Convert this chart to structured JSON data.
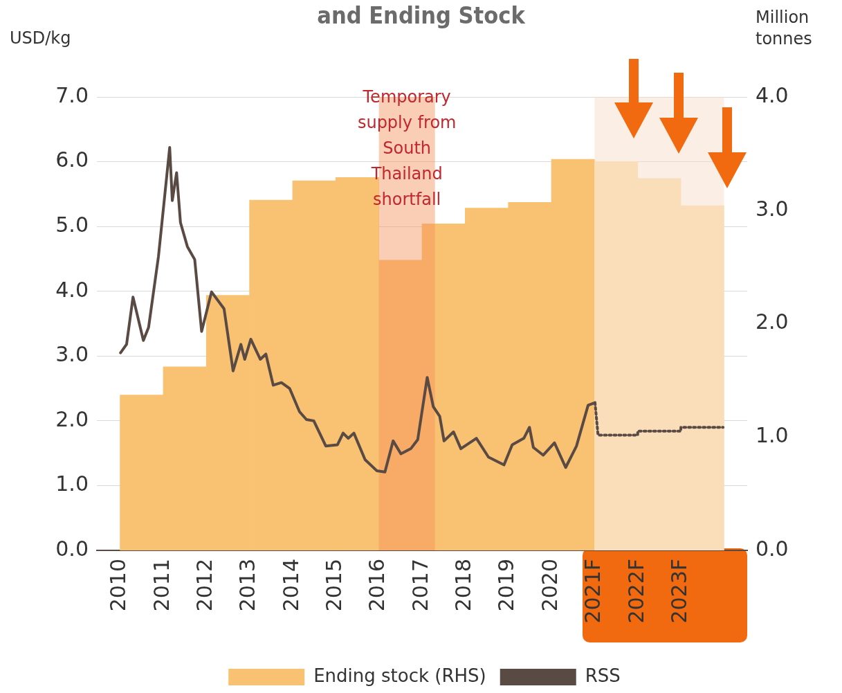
{
  "chart_data": {
    "type": "line",
    "title": "and Ending Stock",
    "ylabel": "USD/kg",
    "y2label": "Million tonnes",
    "xlim": [
      2010,
      2024
    ],
    "xticks": [
      2010,
      2011,
      2012,
      2013,
      2014,
      2015,
      2016,
      2017,
      2018,
      2019,
      2020,
      {
        "value": 2021,
        "label": "2021F"
      },
      {
        "value": 2022,
        "label": "2022F"
      },
      {
        "value": 2023,
        "label": "2023F"
      }
    ],
    "ylim": [
      0,
      7
    ],
    "yticks": [
      {
        "value": 0,
        "label": "0.0"
      },
      {
        "value": 1,
        "label": "1.0"
      },
      {
        "value": 2,
        "label": "2.0"
      },
      {
        "value": 3,
        "label": "3.0"
      },
      {
        "value": 4,
        "label": "4.0"
      },
      {
        "value": 5,
        "label": "5.0"
      },
      {
        "value": 6,
        "label": "6.0"
      },
      {
        "value": 7,
        "label": "7.0"
      }
    ],
    "y2lim": [
      0,
      4
    ],
    "y2ticks": [
      {
        "value": 0,
        "label": "0.0"
      },
      {
        "value": 1,
        "label": "1.0"
      },
      {
        "value": 2,
        "label": "2.0"
      },
      {
        "value": 3,
        "label": "3.0"
      },
      {
        "value": 4,
        "label": "4.0"
      }
    ],
    "grid": "y",
    "legend": "bottom",
    "series": [
      {
        "name": "Ending stock (RHS)",
        "type": "bar",
        "axis": "y2",
        "color": "#f9c272",
        "colors": [
          "#f9c272",
          "#f9c272",
          "#f9c272",
          "#f9c272",
          "#f9c272",
          "#f9c272",
          "#f9c272",
          "#f9c272",
          "#f9c272",
          "#f9c272",
          "#f9c272",
          "#fde2b2",
          "#fde2b2",
          "#fde2b2"
        ],
        "x": [
          2010.5,
          2011.5,
          2012.5,
          2013.5,
          2014.5,
          2015.5,
          2016.5,
          2017.5,
          2018.5,
          2019.5,
          2020.5,
          2021.5,
          2022.5,
          2023.5
        ],
        "values": [
          1.37,
          1.62,
          2.25,
          3.09,
          3.26,
          3.29,
          2.56,
          2.88,
          3.02,
          3.07,
          3.45,
          3.43,
          3.28,
          3.04
        ]
      },
      {
        "name": "RSS",
        "color": "#5a4a44",
        "line_style": "solid",
        "x": [
          2010.01,
          2010.15,
          2010.3,
          2010.54,
          2010.66,
          2010.89,
          2011.15,
          2011.21,
          2011.31,
          2011.4,
          2011.56,
          2011.73,
          2011.89,
          2012.12,
          2012.41,
          2012.62,
          2012.8,
          2012.89,
          2013.03,
          2013.25,
          2013.38,
          2013.55,
          2013.74,
          2013.93,
          2014.16,
          2014.32,
          2014.49,
          2014.77,
          2015.04,
          2015.17,
          2015.29,
          2015.42,
          2015.68,
          2015.95,
          2016.14,
          2016.33,
          2016.51,
          2016.74,
          2016.9,
          2017.12,
          2017.26,
          2017.41,
          2017.51,
          2017.73,
          2017.9,
          2018.26,
          2018.54,
          2018.9,
          2019.09,
          2019.36,
          2019.49,
          2019.58,
          2019.81,
          2020.07,
          2020.33,
          2020.58,
          2020.85,
          2021.01
        ],
        "values": [
          3.05,
          3.18,
          3.91,
          3.24,
          3.44,
          4.54,
          6.22,
          5.4,
          5.83,
          5.06,
          4.69,
          4.49,
          3.38,
          3.99,
          3.73,
          2.77,
          3.18,
          2.95,
          3.26,
          2.95,
          3.03,
          2.55,
          2.59,
          2.5,
          2.14,
          2.02,
          2.0,
          1.61,
          1.63,
          1.81,
          1.73,
          1.81,
          1.4,
          1.23,
          1.21,
          1.69,
          1.49,
          1.57,
          1.71,
          2.67,
          2.22,
          2.07,
          1.69,
          1.83,
          1.57,
          1.73,
          1.44,
          1.32,
          1.63,
          1.73,
          1.9,
          1.59,
          1.47,
          1.66,
          1.28,
          1.61,
          2.24,
          2.28
        ]
      },
      {
        "color": "#5a4a44",
        "line_style": "dotted",
        "x": [
          2021.01,
          2021.08,
          2022.0,
          2022.0,
          2023.0,
          2023.0,
          2023.98
        ],
        "values": [
          2.28,
          1.78,
          1.78,
          1.84,
          1.84,
          1.9,
          1.9
        ]
      }
    ],
    "bands": [
      {
        "axis": "x",
        "from": 2016,
        "to": 2017.3,
        "label": "Temporary supply from South Thailand shortfall",
        "color": "#f4915a"
      },
      {
        "axis": "x",
        "from": 2021,
        "to": 2024,
        "color": "#f7d9c4"
      }
    ]
  }
}
